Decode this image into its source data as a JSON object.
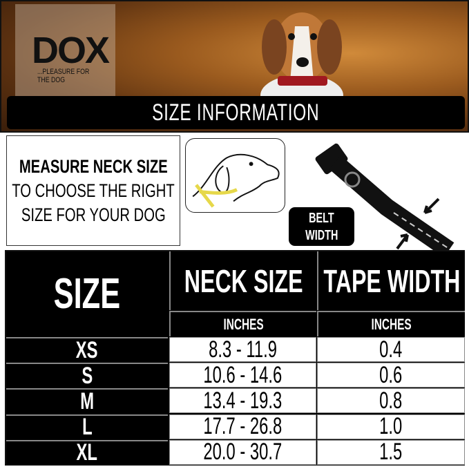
{
  "brand": {
    "logo": "DOX",
    "tagline": "...PLEASURE FOR THE DOG"
  },
  "title": "SIZE INFORMATION",
  "instructions": {
    "line1": "MEASURE NECK SIZE",
    "line2": "TO CHOOSE THE RIGHT",
    "line3": "SIZE FOR YOUR DOG"
  },
  "belt_label": {
    "line1": "BELT",
    "line2": "WIDTH"
  },
  "table": {
    "headers": {
      "size": "SIZE",
      "neck": "NECK SIZE",
      "tape": "TAPE WIDTH",
      "neck_unit": "INCHES",
      "tape_unit": "INCHES"
    },
    "rows": [
      {
        "size": "XS",
        "neck": "8.3 - 11.9",
        "tape": "0.4"
      },
      {
        "size": "S",
        "neck": "10.6 - 14.6",
        "tape": "0.6"
      },
      {
        "size": "M",
        "neck": "13.4 - 19.3",
        "tape": "0.8"
      },
      {
        "size": "L",
        "neck": "17.7 - 26.8",
        "tape": "1.0"
      },
      {
        "size": "XL",
        "neck": "20.0 - 30.7",
        "tape": "1.5"
      }
    ]
  },
  "colors": {
    "banner": "#9a5a1e",
    "bar": "#000000",
    "tape": "#f2e35a",
    "collar": "#d01c2a"
  }
}
